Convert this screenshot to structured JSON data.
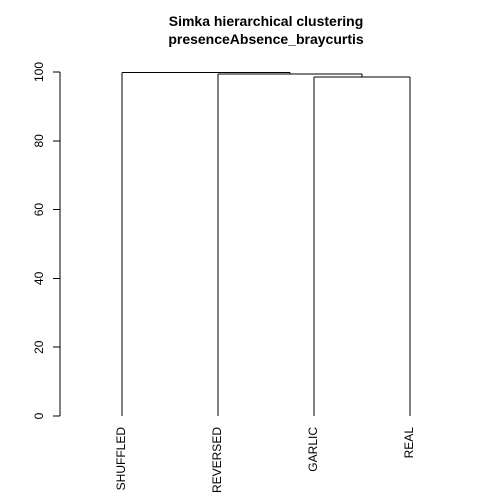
{
  "chart_data": {
    "type": "dendrogram",
    "title_lines": [
      "Simka hierarchical clustering",
      "presenceAbsence_braycurtis"
    ],
    "ylim": [
      0,
      100
    ],
    "y_ticks": [
      0,
      20,
      40,
      60,
      80,
      100
    ],
    "leaves": [
      "SHUFFLED",
      "REVERSED",
      "GARLIC",
      "REAL"
    ],
    "merges": [
      {
        "left": "GARLIC",
        "right": "REAL",
        "height": 98.5
      },
      {
        "left": "REVERSED",
        "right": "GARLIC+REAL",
        "height": 99.4
      },
      {
        "left": "SHUFFLED",
        "right": "REVERSED+GARLIC+REAL",
        "height": 99.9
      }
    ],
    "grid": false,
    "legend": "none"
  }
}
